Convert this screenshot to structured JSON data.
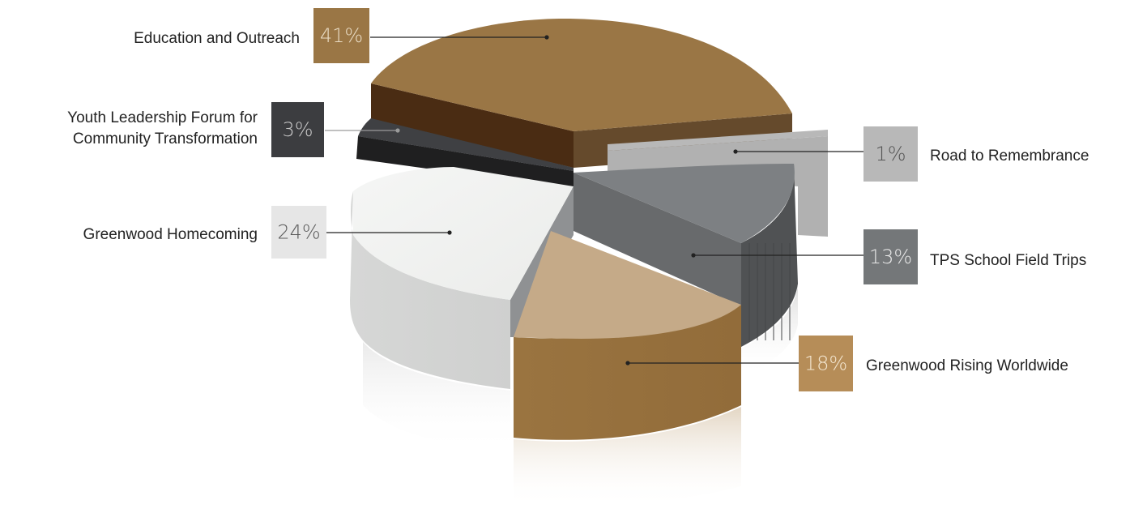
{
  "chart_data": {
    "type": "pie",
    "style": "3d-exploded",
    "title": "",
    "slices": [
      {
        "label": "Education and Outreach",
        "value": 41,
        "value_label": "41%",
        "color": "#9a7645",
        "badge_text_color": "#e9dcc5"
      },
      {
        "label": "Road to Remembrance",
        "value": 1,
        "value_label": "1%",
        "color": "#b8b8b8",
        "badge_text_color": "#555555"
      },
      {
        "label": "TPS School Field Trips",
        "value": 13,
        "value_label": "13%",
        "color": "#747779",
        "badge_text_color": "#e8e8e8"
      },
      {
        "label": "Greenwood Rising Worldwide",
        "value": 18,
        "value_label": "18%",
        "color": "#b68d58",
        "badge_text_color": "#f3e6d0"
      },
      {
        "label": "Greenwood Homecoming",
        "value": 24,
        "value_label": "24%",
        "color": "#e6e6e6",
        "badge_text_color": "#5a5a5a"
      },
      {
        "label": "Youth Leadership Forum for Community Transformation",
        "label_lines": [
          "Youth Leadership Forum for",
          "Community Transformation"
        ],
        "value": 3,
        "value_label": "3%",
        "color": "#3c3d40",
        "badge_text_color": "#c8c8c8"
      }
    ],
    "legend": "none",
    "labels": "callouts-with-badges"
  }
}
